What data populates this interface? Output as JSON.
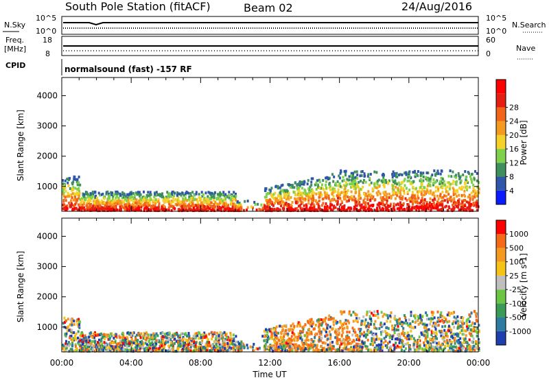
{
  "header": {
    "station": "South Pole Station (fitACF)",
    "beam": "Beam 02",
    "date": "24/Aug/2016"
  },
  "noise_panel": {
    "left_label": "N.Sky",
    "right_label": "N.Search",
    "left_ticks": [
      "10^5",
      "10^0"
    ],
    "right_ticks": [
      "10^5",
      "10^0"
    ]
  },
  "freq_panel": {
    "left_label_1": "Freq.",
    "left_label_2": "[MHz]",
    "right_label": "Nave",
    "left_ticks": [
      "18",
      "8"
    ],
    "right_ticks": [
      "60",
      "0"
    ]
  },
  "cpid_panel": {
    "left_label": "CPID",
    "text": "normalsound (fast) -157 RF"
  },
  "chart_data": [
    {
      "type": "heatmap",
      "name": "power",
      "ylabel": "Slant Range [km]",
      "xlabel": "Time UT",
      "xlim": [
        "00:00",
        "24:00"
      ],
      "ylim": [
        180,
        4600
      ],
      "y_ticks": [
        "1000",
        "2000",
        "3000",
        "4000"
      ],
      "x_ticks": [
        "00:00",
        "04:00",
        "08:00",
        "12:00",
        "16:00",
        "20:00",
        "00:00"
      ],
      "colorbar": {
        "label": "Power [dB]",
        "ticks": [
          "4",
          "8",
          "12",
          "16",
          "20",
          "24",
          "28"
        ],
        "colors": [
          "#0a1cff",
          "#2f56a8",
          "#3f8f5d",
          "#7fd04a",
          "#f5d22a",
          "#f59a20",
          "#f26418",
          "#e41f12",
          "#ff0000"
        ]
      }
    },
    {
      "type": "heatmap",
      "name": "velocity",
      "ylabel": "Slant Range [km]",
      "xlabel": "Time UT",
      "xlim": [
        "00:00",
        "24:00"
      ],
      "ylim": [
        180,
        4600
      ],
      "y_ticks": [
        "1000",
        "2000",
        "3000",
        "4000"
      ],
      "x_ticks": [
        "00:00",
        "04:00",
        "08:00",
        "12:00",
        "16:00",
        "20:00",
        "00:00"
      ],
      "colorbar": {
        "label": "Velocity [m s-1]",
        "ticks": [
          "1000",
          "500",
          "100",
          "25",
          "-25",
          "-100",
          "-500",
          "-1000"
        ],
        "colors": [
          "#1f3fae",
          "#2f7aa0",
          "#3b9a55",
          "#6cc644",
          "#bfbfbf",
          "#f5c218",
          "#f59a20",
          "#f46a16",
          "#ff0000"
        ]
      }
    }
  ]
}
